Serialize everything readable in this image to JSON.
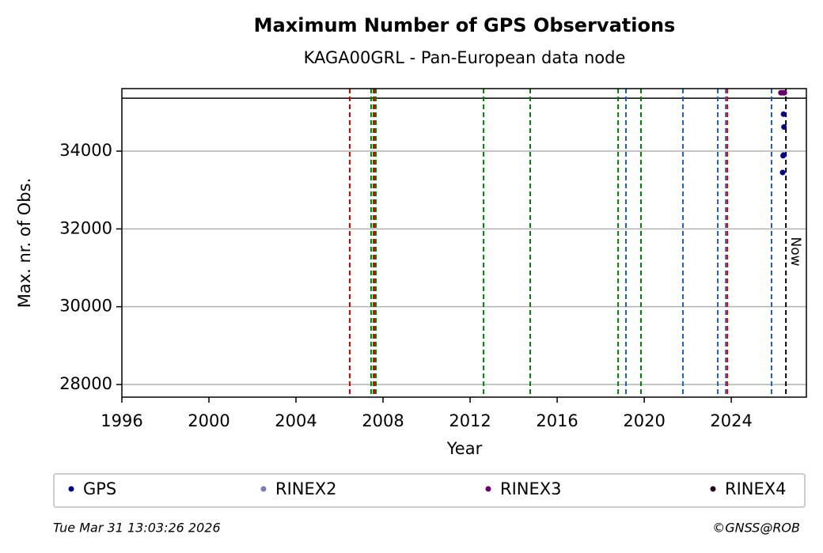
{
  "chart_data": {
    "type": "scatter",
    "title": "Maximum Number of GPS Observations",
    "subtitle": "KAGA00GRL - Pan-European data node",
    "x_label": "Year",
    "y_label": "Max. nr. of Obs.",
    "xlim": [
      1996,
      2027.45
    ],
    "ylim": [
      27675,
      35607
    ],
    "xticks": [
      1996,
      2000,
      2004,
      2008,
      2012,
      2016,
      2020,
      2024
    ],
    "yticks": [
      28000,
      30000,
      32000,
      34000
    ],
    "grid": true,
    "hline": 35360,
    "vlines": [
      {
        "color": "#008000",
        "values": [
          2006.47,
          2007.45,
          2007.56,
          2007.67,
          2012.62,
          2014.76,
          2018.8,
          2019.85
        ]
      },
      {
        "color": "#1f5fb4",
        "values": [
          2019.16,
          2021.78,
          2023.38,
          2023.75,
          2025.85
        ]
      },
      {
        "color": "#e00000",
        "values": [
          2006.47,
          2007.6,
          2023.82
        ]
      }
    ],
    "now": {
      "label": "Now",
      "value": 2026.51
    },
    "series": [
      {
        "name": "GPS",
        "color": "#00008b",
        "x": [
          2026.4,
          2026.42,
          2026.4,
          2026.38,
          2026.36
        ],
        "values": [
          34950,
          34620,
          33900,
          33880,
          33450
        ]
      },
      {
        "name": "RINEX2",
        "color": "#7b7bb8",
        "x": [],
        "values": []
      },
      {
        "name": "RINEX3",
        "color": "#6b006b",
        "x": [
          2026.28,
          2026.36,
          2026.44
        ],
        "values": [
          35500,
          35500,
          35500
        ]
      },
      {
        "name": "RINEX4",
        "color": "#2a0020",
        "x": [],
        "values": []
      }
    ],
    "footer_left": "Tue Mar 31 13:03:26 2026",
    "footer_right": "©GNSS@ROB"
  }
}
